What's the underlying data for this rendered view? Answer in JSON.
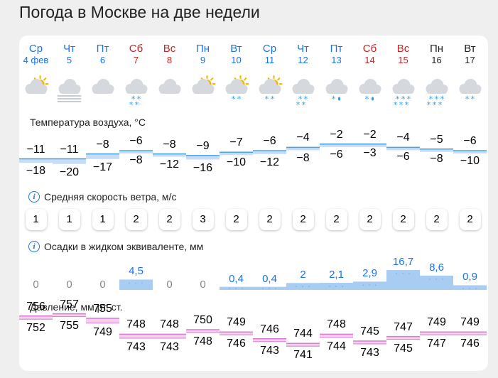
{
  "title": "Погода в Москве на две недели",
  "days": [
    {
      "name": "Ср",
      "date": "4 фев",
      "color": "#1a73e8",
      "icon": "sun-cloud-icon",
      "snow": 0
    },
    {
      "name": "Чт",
      "date": "5",
      "color": "#1a73e8",
      "icon": "fog-cloud-icon",
      "snow": 0
    },
    {
      "name": "Пт",
      "date": "6",
      "color": "#1a73e8",
      "icon": "cloud-icon",
      "snow": 0
    },
    {
      "name": "Сб",
      "date": "7",
      "color": "#cc2222",
      "icon": "cloud-snow-icon",
      "snow": 4
    },
    {
      "name": "Вс",
      "date": "8",
      "color": "#cc2222",
      "icon": "cloud-icon",
      "snow": 0
    },
    {
      "name": "Пн",
      "date": "9",
      "color": "#1a73e8",
      "icon": "sun-cloud-icon",
      "snow": 0
    },
    {
      "name": "Вт",
      "date": "10",
      "color": "#1a73e8",
      "icon": "sun-cloud-snow-icon",
      "snow": 2
    },
    {
      "name": "Ср",
      "date": "11",
      "color": "#1a73e8",
      "icon": "sun-cloud-snow-icon",
      "snow": 2
    },
    {
      "name": "Чт",
      "date": "12",
      "color": "#1a73e8",
      "icon": "cloud-snow-icon",
      "snow": 4
    },
    {
      "name": "Пт",
      "date": "13",
      "color": "#1a73e8",
      "icon": "cloud-sleet-icon",
      "snow": 2
    },
    {
      "name": "Сб",
      "date": "14",
      "color": "#cc2222",
      "icon": "cloud-sleet-icon",
      "snow": 2
    },
    {
      "name": "Вс",
      "date": "15",
      "color": "#cc2222",
      "icon": "cloud-snow-icon",
      "snow": 6
    },
    {
      "name": "Пн",
      "date": "16",
      "color": "#222222",
      "icon": "cloud-snow-icon",
      "snow": 6
    },
    {
      "name": "Вт",
      "date": "17",
      "color": "#222222",
      "icon": "cloud-snow-icon",
      "snow": 2
    }
  ],
  "temperature": {
    "label": "Температура воздуха, °C",
    "day": [
      "−11",
      "−11",
      "−8",
      "−6",
      "−8",
      "−9",
      "−7",
      "−6",
      "−4",
      "−2",
      "−2",
      "−4",
      "−5",
      "−6"
    ],
    "night": [
      "−18",
      "−20",
      "−17",
      "−8",
      "−12",
      "−16",
      "−10",
      "−12",
      "−8",
      "−6",
      "−3",
      "−6",
      "−8",
      "−10"
    ],
    "chart_data": {
      "type": "area",
      "day": [
        -11,
        -11,
        -8,
        -6,
        -8,
        -9,
        -7,
        -6,
        -4,
        -2,
        -2,
        -4,
        -5,
        -6
      ],
      "night": [
        -18,
        -20,
        -17,
        -8,
        -12,
        -16,
        -10,
        -12,
        -8,
        -6,
        -3,
        -6,
        -8,
        -10
      ]
    }
  },
  "wind": {
    "label": "Средняя скорость ветра, м/с",
    "values": [
      "1",
      "1",
      "1",
      "2",
      "2",
      "3",
      "2",
      "2",
      "2",
      "2",
      "2",
      "2",
      "2",
      "2"
    ]
  },
  "precip": {
    "label": "Осадки в жидком эквиваленте, мм",
    "values": [
      "0",
      "0",
      "0",
      "4,5",
      "0",
      "0",
      "0,4",
      "0,4",
      "2",
      "2,1",
      "2,9",
      "16,7",
      "8,6",
      "0,9"
    ],
    "chart_data": {
      "type": "bar",
      "values": [
        0,
        0,
        0,
        4.5,
        0,
        0,
        0.4,
        0.4,
        2,
        2.1,
        2.9,
        16.7,
        8.6,
        0.9
      ]
    }
  },
  "pressure": {
    "label": "Давление, мм рт. ст.",
    "day": [
      "756",
      "757",
      "755",
      "748",
      "748",
      "750",
      "749",
      "746",
      "744",
      "748",
      "745",
      "747",
      "749",
      "749"
    ],
    "night": [
      "752",
      "755",
      "749",
      "743",
      "743",
      "748",
      "746",
      "743",
      "741",
      "744",
      "743",
      "745",
      "747",
      "746"
    ],
    "chart_data": {
      "type": "area",
      "day": [
        756,
        757,
        755,
        748,
        748,
        750,
        749,
        746,
        744,
        748,
        745,
        747,
        749,
        749
      ],
      "night": [
        752,
        755,
        749,
        743,
        743,
        748,
        746,
        743,
        741,
        744,
        743,
        745,
        747,
        746
      ]
    }
  },
  "colors": {
    "accent": "#1a73e8",
    "weekend": "#cc2222",
    "tempFill": "#c7dcf7",
    "tempLine": "#4aa3e0",
    "precipFill": "#a9cdf2",
    "pressFill": "#f4cdef",
    "pressLine": "#d47fd0"
  }
}
